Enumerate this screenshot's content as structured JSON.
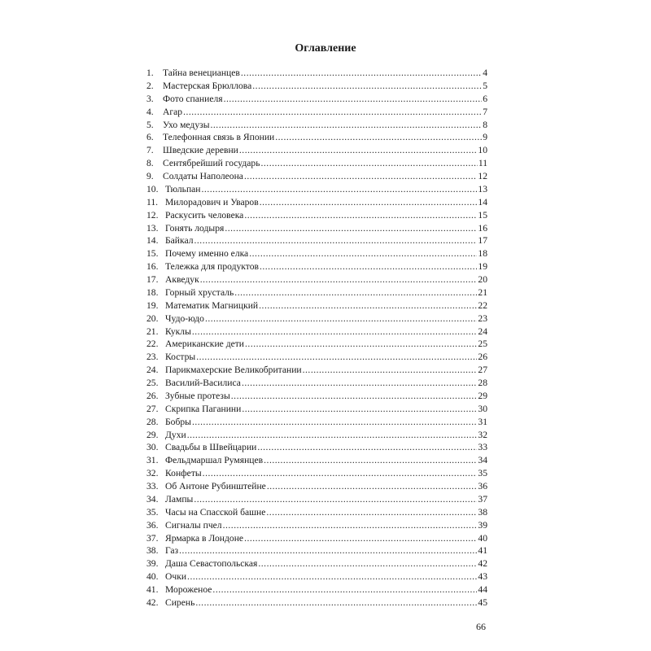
{
  "title": "Оглавление",
  "page_number": "66",
  "entries": [
    {
      "n": "1.",
      "t": "Тайна венецианцев",
      "p": "4"
    },
    {
      "n": "2.",
      "t": "Мастерская Брюллова",
      "p": "5"
    },
    {
      "n": "3.",
      "t": "Фото спаниеля",
      "p": "6"
    },
    {
      "n": "4.",
      "t": "Агар",
      "p": "7"
    },
    {
      "n": "5.",
      "t": "Ухо медузы",
      "p": "8"
    },
    {
      "n": "6.",
      "t": "Телефонная связь в Японии",
      "p": "9"
    },
    {
      "n": "7.",
      "t": "Шведские деревни",
      "p": "10"
    },
    {
      "n": "8.",
      "t": "Сентябрейший государь",
      "p": "11"
    },
    {
      "n": "9.",
      "t": "Солдаты Наполеона",
      "p": "12"
    },
    {
      "n": "10.",
      "t": "Тюльпан",
      "p": "13"
    },
    {
      "n": "11.",
      "t": "Милорадович и Уваров",
      "p": "14"
    },
    {
      "n": "12.",
      "t": "Раскусить человека",
      "p": "15"
    },
    {
      "n": "13.",
      "t": "Гонять лодыря",
      "p": "16"
    },
    {
      "n": "14.",
      "t": "Байкал",
      "p": "17"
    },
    {
      "n": "15.",
      "t": "Почему именно елка",
      "p": "18"
    },
    {
      "n": "16.",
      "t": "Тележка для продуктов",
      "p": "19"
    },
    {
      "n": "17.",
      "t": "Акведук",
      "p": "20"
    },
    {
      "n": "18.",
      "t": "Горный хрусталь",
      "p": "21"
    },
    {
      "n": "19.",
      "t": "Математик Магницкий",
      "p": "22"
    },
    {
      "n": "20.",
      "t": "Чудо-юдо",
      "p": "23"
    },
    {
      "n": "21.",
      "t": "Куклы",
      "p": "24"
    },
    {
      "n": "22.",
      "t": "Американские дети",
      "p": "25"
    },
    {
      "n": "23.",
      "t": "Костры",
      "p": "26"
    },
    {
      "n": "24.",
      "t": "Парикмахерские Великобритании",
      "p": "27"
    },
    {
      "n": "25.",
      "t": "Василий-Василиса",
      "p": "28"
    },
    {
      "n": "26.",
      "t": "Зубные протезы",
      "p": "29"
    },
    {
      "n": "27.",
      "t": "Скрипка Паганини",
      "p": "30"
    },
    {
      "n": "28.",
      "t": "Бобры",
      "p": "31"
    },
    {
      "n": "29.",
      "t": "Духи",
      "p": "32"
    },
    {
      "n": "30.",
      "t": "Свадьбы в Швейцарии",
      "p": "33"
    },
    {
      "n": "31.",
      "t": "Фельдмаршал Румянцев",
      "p": "34"
    },
    {
      "n": "32.",
      "t": "Конфеты",
      "p": "35"
    },
    {
      "n": "33.",
      "t": "Об Антоне Рубинштейне",
      "p": "36"
    },
    {
      "n": "34.",
      "t": "Лампы",
      "p": "37"
    },
    {
      "n": "35.",
      "t": "Часы на Спасской башне",
      "p": "38"
    },
    {
      "n": "36.",
      "t": "Сигналы пчел",
      "p": "39"
    },
    {
      "n": "37.",
      "t": "Ярмарка в Лондоне",
      "p": "40"
    },
    {
      "n": "38.",
      "t": "Газ",
      "p": "41"
    },
    {
      "n": "39.",
      "t": "Даша Севастопольская",
      "p": "42"
    },
    {
      "n": "40.",
      "t": "Очки",
      "p": "43"
    },
    {
      "n": "41.",
      "t": "Мороженое",
      "p": "44"
    },
    {
      "n": "42.",
      "t": "Сирень",
      "p": "45"
    }
  ]
}
